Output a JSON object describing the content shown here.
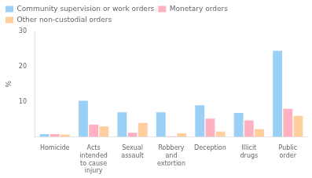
{
  "chart_data": {
    "type": "bar",
    "ylabel": "%",
    "categories": [
      "Homicide",
      "Acts\nintended\nto cause\ninjury",
      "Sexual\nassault",
      "Robbery\nand\nextortion",
      "Deception",
      "Illicit\ndrugs",
      "Public\norder"
    ],
    "series": [
      {
        "name": "Community supervision or work orders",
        "values": [
          0.8,
          10.3,
          7.0,
          7.0,
          9.0,
          6.8,
          24.5
        ]
      },
      {
        "name": "Monetary orders",
        "values": [
          0.8,
          3.5,
          1.2,
          0.2,
          5.2,
          4.7,
          8.0
        ]
      },
      {
        "name": "Other non-custodial orders",
        "values": [
          0.7,
          3.0,
          4.0,
          1.0,
          1.5,
          2.2,
          6.0
        ]
      }
    ],
    "ylim": [
      0,
      30
    ],
    "yticks": [
      {
        "value": 0,
        "label": ""
      },
      10,
      20,
      30
    ],
    "grid": false,
    "legend": "upper left"
  }
}
